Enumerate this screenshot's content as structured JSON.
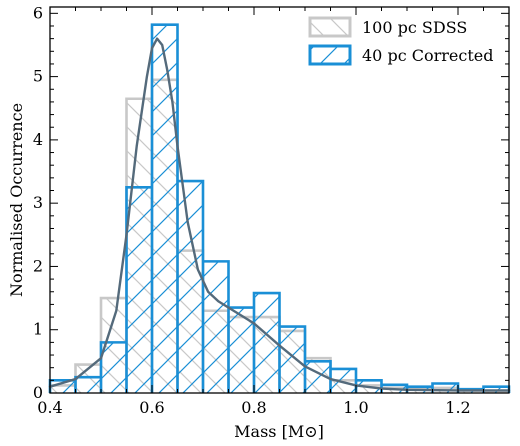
{
  "chart_data": {
    "type": "bar",
    "xlabel": "Mass [M⊙]",
    "ylabel": "Normalised Occurrence",
    "xlim": [
      0.4,
      1.3
    ],
    "ylim": [
      0,
      6.1
    ],
    "x_ticks": [
      "0.4",
      "0.6",
      "0.8",
      "1.0",
      "1.2"
    ],
    "x_tick_values": [
      0.4,
      0.6,
      0.8,
      1.0,
      1.2
    ],
    "y_ticks": [
      "0",
      "1",
      "2",
      "3",
      "4",
      "5",
      "6"
    ],
    "y_tick_values": [
      0,
      1,
      2,
      3,
      4,
      5,
      6
    ],
    "grid": false,
    "legend_position": "top-right",
    "series": [
      {
        "name": "100 pc SDSS",
        "color": "#c8c8c8",
        "hatch": "backslash",
        "bin_edges": [
          0.4,
          0.45,
          0.5,
          0.55,
          0.6,
          0.65,
          0.7,
          0.75,
          0.8,
          0.85,
          0.9,
          0.95,
          1.0,
          1.05,
          1.1,
          1.15,
          1.2,
          1.25,
          1.3
        ],
        "values": [
          0.12,
          0.45,
          1.5,
          4.65,
          4.95,
          2.25,
          1.3,
          1.2,
          1.2,
          0.98,
          0.55,
          0.2,
          0.12,
          0.08,
          0.06,
          0.08,
          0.04,
          0.03
        ]
      },
      {
        "name": "40 pc Corrected",
        "color": "#1a8fd6",
        "hatch": "forward",
        "bin_edges": [
          0.4,
          0.45,
          0.5,
          0.55,
          0.6,
          0.65,
          0.7,
          0.75,
          0.8,
          0.85,
          0.9,
          0.95,
          1.0,
          1.05,
          1.1,
          1.15,
          1.2,
          1.25,
          1.3
        ],
        "values": [
          0.2,
          0.25,
          0.8,
          3.25,
          5.82,
          3.35,
          2.08,
          1.35,
          1.58,
          1.05,
          0.5,
          0.38,
          0.2,
          0.13,
          0.1,
          0.15,
          0.06,
          0.1
        ]
      }
    ],
    "kde": {
      "color": "#546a7b",
      "x": [
        0.4,
        0.45,
        0.5,
        0.53,
        0.55,
        0.57,
        0.59,
        0.6,
        0.61,
        0.62,
        0.63,
        0.64,
        0.65,
        0.67,
        0.69,
        0.71,
        0.73,
        0.76,
        0.8,
        0.85,
        0.9,
        0.95,
        1.0,
        1.05,
        1.1,
        1.2,
        1.3
      ],
      "y": [
        0.1,
        0.22,
        0.55,
        1.3,
        2.5,
        3.9,
        5.0,
        5.45,
        5.6,
        5.5,
        5.1,
        4.6,
        3.9,
        2.7,
        1.95,
        1.6,
        1.45,
        1.3,
        1.1,
        0.75,
        0.42,
        0.22,
        0.12,
        0.07,
        0.05,
        0.04,
        0.04
      ]
    }
  }
}
